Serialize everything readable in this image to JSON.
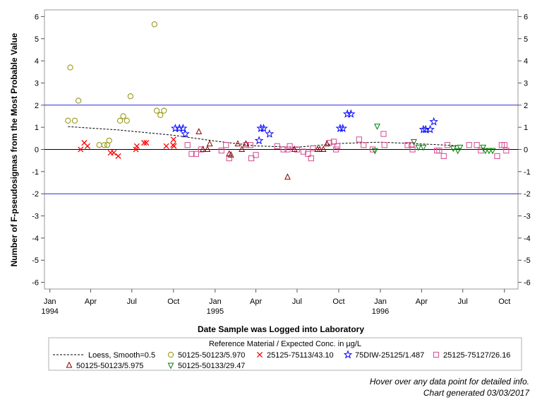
{
  "chart_data": {
    "type": "scatter",
    "title": "",
    "xlabel": "Date Sample was Logged into Laboratory",
    "ylabel": "Number of F-pseudosigmas from the Most Probable Value",
    "ylim": [
      -6.3,
      6.3
    ],
    "y_ticks": [
      -6,
      -5,
      -4,
      -3,
      -2,
      -1,
      0,
      1,
      2,
      3,
      4,
      5,
      6
    ],
    "xlim": [
      "1993-12-20",
      "1996-10-31"
    ],
    "x_ticks": [
      {
        "date": "1994-01-01",
        "label": "Jan",
        "year": "1994"
      },
      {
        "date": "1994-04-01",
        "label": "Apr",
        "year": ""
      },
      {
        "date": "1994-07-01",
        "label": "Jul",
        "year": ""
      },
      {
        "date": "1994-10-01",
        "label": "Oct",
        "year": ""
      },
      {
        "date": "1995-01-01",
        "label": "Jan",
        "year": "1995"
      },
      {
        "date": "1995-04-01",
        "label": "Apr",
        "year": ""
      },
      {
        "date": "1995-07-01",
        "label": "Jul",
        "year": ""
      },
      {
        "date": "1995-10-01",
        "label": "Oct",
        "year": ""
      },
      {
        "date": "1996-01-01",
        "label": "Jan",
        "year": "1996"
      },
      {
        "date": "1996-04-01",
        "label": "Apr",
        "year": ""
      },
      {
        "date": "1996-07-01",
        "label": "Jul",
        "year": ""
      },
      {
        "date": "1996-10-01",
        "label": "Oct",
        "year": ""
      }
    ],
    "reference_lines": [
      {
        "y": 2,
        "color": "#2a2adf"
      },
      {
        "y": 0,
        "color": "#000000"
      },
      {
        "y": -2,
        "color": "#2a2adf"
      }
    ],
    "legend_title": "Reference Material / Expected Conc. in µg/L",
    "legend_position": "bottom",
    "grid": false,
    "loess": {
      "name": "Loess, Smooth=0.5",
      "color": "#000000",
      "points": [
        [
          "1994-02-10",
          1.03
        ],
        [
          "1994-06-01",
          0.88
        ],
        [
          "1994-10-01",
          0.64
        ],
        [
          "1995-01-01",
          0.38
        ],
        [
          "1995-04-01",
          0.16
        ],
        [
          "1995-07-01",
          0.1
        ],
        [
          "1995-10-01",
          0.27
        ],
        [
          "1996-01-01",
          0.33
        ],
        [
          "1996-04-01",
          0.25
        ],
        [
          "1996-06-20",
          0.17
        ]
      ]
    },
    "series": [
      {
        "name": "50125-50123/5.970",
        "marker": "circle",
        "color": "#8f8f00",
        "points": [
          [
            "1994-02-10",
            1.3
          ],
          [
            "1994-02-15",
            3.7
          ],
          [
            "1994-02-25",
            1.3
          ],
          [
            "1994-03-05",
            2.2
          ],
          [
            "1994-04-20",
            0.2
          ],
          [
            "1994-05-01",
            0.2
          ],
          [
            "1994-05-08",
            0.2
          ],
          [
            "1994-05-12",
            0.4
          ],
          [
            "1994-06-05",
            1.3
          ],
          [
            "1994-06-12",
            1.5
          ],
          [
            "1994-06-20",
            1.3
          ],
          [
            "1994-06-28",
            2.4
          ],
          [
            "1994-08-20",
            5.65
          ],
          [
            "1994-08-25",
            1.75
          ],
          [
            "1994-09-02",
            1.55
          ],
          [
            "1994-09-10",
            1.75
          ]
        ]
      },
      {
        "name": "25125-75113/43.10",
        "marker": "x",
        "color": "#ff0000",
        "points": [
          [
            "1994-03-10",
            0.0
          ],
          [
            "1994-03-18",
            0.3
          ],
          [
            "1994-03-25",
            0.15
          ],
          [
            "1994-05-15",
            -0.15
          ],
          [
            "1994-05-22",
            -0.15
          ],
          [
            "1994-06-01",
            -0.3
          ],
          [
            "1994-07-10",
            0.0
          ],
          [
            "1994-07-12",
            0.15
          ],
          [
            "1994-07-28",
            0.3
          ],
          [
            "1994-08-02",
            0.3
          ],
          [
            "1994-09-15",
            0.15
          ],
          [
            "1994-09-30",
            0.2
          ],
          [
            "1994-10-01",
            0.45
          ],
          [
            "1994-10-02",
            0.15
          ]
        ]
      },
      {
        "name": "75DIW-25125/1.487",
        "marker": "star",
        "color": "#0000ff",
        "points": [
          [
            "1994-10-05",
            0.95
          ],
          [
            "1994-10-14",
            0.95
          ],
          [
            "1994-10-22",
            0.95
          ],
          [
            "1994-10-27",
            0.7
          ],
          [
            "1995-04-08",
            0.4
          ],
          [
            "1995-04-12",
            0.95
          ],
          [
            "1995-04-18",
            0.95
          ],
          [
            "1995-05-01",
            0.7
          ],
          [
            "1995-10-04",
            0.95
          ],
          [
            "1995-10-10",
            0.95
          ],
          [
            "1995-10-20",
            1.6
          ],
          [
            "1995-10-28",
            1.6
          ],
          [
            "1996-04-05",
            0.9
          ],
          [
            "1996-04-10",
            0.9
          ],
          [
            "1996-04-20",
            0.9
          ],
          [
            "1996-04-28",
            1.25
          ]
        ]
      },
      {
        "name": "25125-75127/26.16",
        "marker": "square",
        "color": "#d4488f",
        "points": [
          [
            "1994-11-01",
            0.2
          ],
          [
            "1994-11-10",
            -0.2
          ],
          [
            "1994-11-20",
            -0.2
          ],
          [
            "1994-12-01",
            0.0
          ],
          [
            "1995-01-15",
            -0.05
          ],
          [
            "1995-01-25",
            0.2
          ],
          [
            "1995-02-01",
            -0.4
          ],
          [
            "1995-03-10",
            0.2
          ],
          [
            "1995-03-20",
            0.2
          ],
          [
            "1995-03-22",
            -0.4
          ],
          [
            "1995-04-01",
            -0.25
          ],
          [
            "1995-05-18",
            0.15
          ],
          [
            "1995-06-01",
            0.0
          ],
          [
            "1995-06-10",
            0.0
          ],
          [
            "1995-06-15",
            0.15
          ],
          [
            "1995-07-01",
            0.0
          ],
          [
            "1995-07-15",
            -0.1
          ],
          [
            "1995-07-25",
            -0.2
          ],
          [
            "1995-08-01",
            -0.4
          ],
          [
            "1995-08-05",
            0.05
          ],
          [
            "1995-09-10",
            0.3
          ],
          [
            "1995-09-20",
            0.35
          ],
          [
            "1995-09-25",
            0.0
          ],
          [
            "1995-09-28",
            0.15
          ],
          [
            "1995-11-15",
            0.45
          ],
          [
            "1995-11-25",
            0.2
          ],
          [
            "1995-12-15",
            0.0
          ],
          [
            "1996-01-08",
            0.7
          ],
          [
            "1996-01-10",
            0.2
          ],
          [
            "1996-03-01",
            0.2
          ],
          [
            "1996-03-10",
            0.2
          ],
          [
            "1996-03-12",
            0.0
          ],
          [
            "1996-05-05",
            -0.05
          ],
          [
            "1996-05-10",
            -0.05
          ],
          [
            "1996-05-20",
            -0.3
          ],
          [
            "1996-05-28",
            0.2
          ],
          [
            "1996-07-15",
            0.2
          ],
          [
            "1996-08-01",
            0.2
          ],
          [
            "1996-08-10",
            -0.05
          ],
          [
            "1996-09-15",
            -0.3
          ],
          [
            "1996-09-25",
            0.2
          ],
          [
            "1996-10-01",
            0.2
          ],
          [
            "1996-10-05",
            -0.05
          ]
        ]
      },
      {
        "name": "50125-50123/5.975",
        "marker": "triangle",
        "color": "#8b0000",
        "points": [
          [
            "1994-11-26",
            0.8
          ],
          [
            "1994-12-05",
            0.0
          ],
          [
            "1994-12-15",
            0.0
          ],
          [
            "1994-12-20",
            0.25
          ],
          [
            "1995-02-01",
            -0.2
          ],
          [
            "1995-02-05",
            -0.25
          ],
          [
            "1995-02-20",
            0.25
          ],
          [
            "1995-03-01",
            0.0
          ],
          [
            "1995-03-10",
            0.25
          ],
          [
            "1995-06-10",
            -1.25
          ],
          [
            "1995-06-25",
            0.0
          ],
          [
            "1995-08-15",
            0.0
          ],
          [
            "1995-08-20",
            0.0
          ],
          [
            "1995-08-28",
            0.0
          ],
          [
            "1995-09-05",
            0.25
          ]
        ]
      },
      {
        "name": "50125-50133/29.47",
        "marker": "triangle-down",
        "color": "#008000",
        "points": [
          [
            "1995-12-20",
            -0.05
          ],
          [
            "1995-12-25",
            1.05
          ],
          [
            "1996-03-15",
            0.35
          ],
          [
            "1996-03-25",
            0.1
          ],
          [
            "1996-04-05",
            0.1
          ],
          [
            "1996-06-10",
            0.05
          ],
          [
            "1996-06-20",
            -0.05
          ],
          [
            "1996-06-25",
            0.1
          ],
          [
            "1996-08-15",
            0.1
          ],
          [
            "1996-08-20",
            -0.05
          ],
          [
            "1996-08-28",
            -0.05
          ],
          [
            "1996-09-05",
            -0.05
          ]
        ]
      }
    ]
  },
  "notes": {
    "hover": "Hover over any data point for detailed info.",
    "generated": "Chart generated 03/03/2017"
  }
}
